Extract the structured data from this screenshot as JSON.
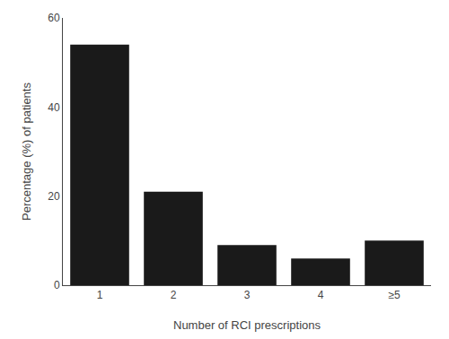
{
  "chart_data": {
    "type": "bar",
    "categories": [
      "1",
      "2",
      "3",
      "4",
      "≥5"
    ],
    "values": [
      54,
      21,
      9,
      6,
      10
    ],
    "color": "#1a1a1a",
    "xlabel": "Number of RCI prescriptions",
    "ylabel": "Percentage (%) of patients",
    "ylim": [
      0,
      60
    ],
    "yticks": [
      0,
      20,
      40,
      60
    ],
    "grid": false
  }
}
